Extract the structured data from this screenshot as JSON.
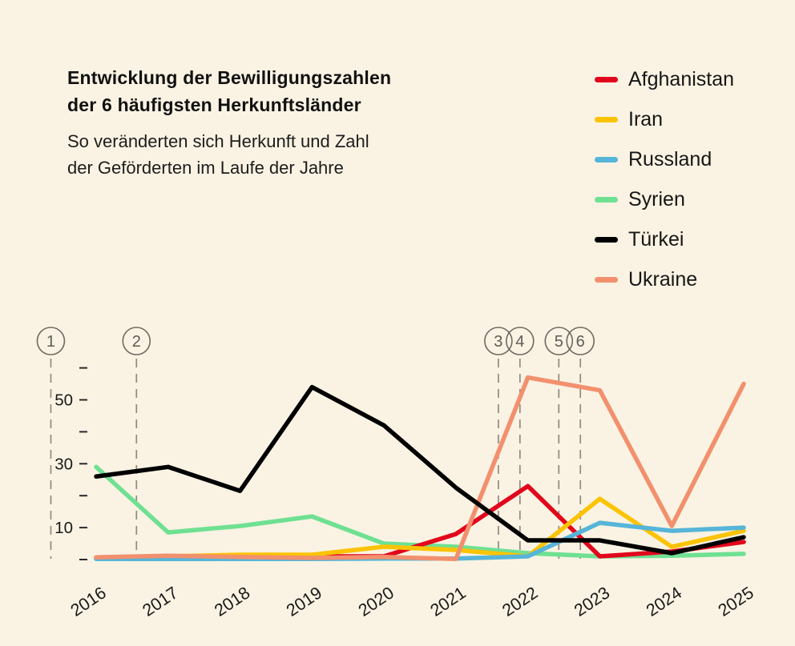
{
  "title": {
    "line1": "Entwicklung der Bewilligungszahlen",
    "line2": "der 6 häufigsten Herkunftsländer"
  },
  "subtitle": {
    "line1": "So veränderten sich Herkunft und Zahl",
    "line2": "der Geförderten im Laufe der Jahre"
  },
  "legend": [
    {
      "label": "Afghanistan",
      "color": "#e2061c"
    },
    {
      "label": "Iran",
      "color": "#fbc303"
    },
    {
      "label": "Russland",
      "color": "#56b5d8"
    },
    {
      "label": "Syrien",
      "color": "#6fe092"
    },
    {
      "label": "Türkei",
      "color": "#000000"
    },
    {
      "label": "Ukraine",
      "color": "#f2906e"
    }
  ],
  "annotations": {
    "items": [
      {
        "label": "1",
        "x_year": 2015.37
      },
      {
        "label": "2",
        "x_year": 2016.56
      },
      {
        "label": "3",
        "x_year": 2021.59
      },
      {
        "label": "4",
        "x_year": 2021.89
      },
      {
        "label": "5",
        "x_year": 2022.43
      },
      {
        "label": "6",
        "x_year": 2022.73
      }
    ],
    "circle_color": "#6e6a62",
    "number_color": "#5f5b55",
    "dash_color": "#908a80"
  },
  "chart_data": {
    "type": "line",
    "x": [
      2016,
      2017,
      2018,
      2019,
      2020,
      2021,
      2022,
      2023,
      2024,
      2025
    ],
    "series": [
      {
        "name": "Afghanistan",
        "color": "#e2061c",
        "values": [
          0.5,
          0.5,
          0.5,
          1,
          1,
          8,
          23,
          1,
          2.5,
          5.5
        ]
      },
      {
        "name": "Iran",
        "color": "#fbc303",
        "values": [
          0.5,
          1,
          1.5,
          1.5,
          4,
          3,
          1,
          19,
          4,
          9
        ]
      },
      {
        "name": "Russland",
        "color": "#56b5d8",
        "values": [
          0.2,
          0.2,
          0.2,
          0.2,
          0.3,
          0.3,
          1,
          11.5,
          9,
          10
        ]
      },
      {
        "name": "Syrien",
        "color": "#6fe092",
        "values": [
          29,
          8.5,
          10.5,
          13.5,
          5,
          4,
          2,
          1,
          1.2,
          1.8
        ]
      },
      {
        "name": "Türkei",
        "color": "#000000",
        "values": [
          26,
          29,
          21.5,
          54,
          42,
          22.5,
          6,
          6,
          2,
          7
        ]
      },
      {
        "name": "Ukraine",
        "color": "#f2906e",
        "values": [
          0.7,
          1.2,
          0.8,
          0.5,
          0.8,
          0.2,
          57,
          53,
          10.5,
          55
        ]
      }
    ],
    "z_order": [
      "Syrien",
      "Afghanistan",
      "Iran",
      "Russland",
      "Ukraine",
      "Türkei"
    ],
    "y_axis": {
      "ticks": [
        0,
        10,
        20,
        30,
        40,
        50,
        60
      ],
      "labeled": [
        10,
        30,
        50
      ],
      "ylim": [
        0,
        60
      ]
    },
    "grid": false,
    "legend_position": "top-right",
    "axis_text_color": "#191919"
  },
  "colors": {
    "background": "#faf3e3",
    "text": "#111111"
  }
}
